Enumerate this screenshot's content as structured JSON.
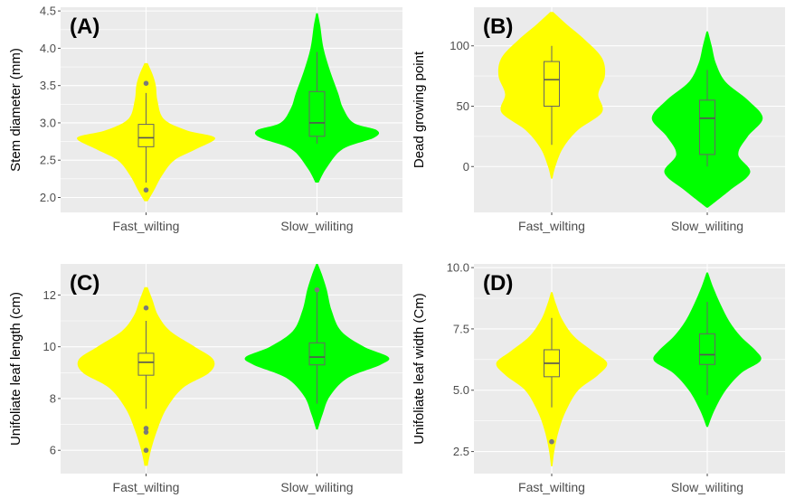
{
  "chart_data": [
    {
      "type": "violin",
      "panel_label": "(A)",
      "ylabel": "Stem diameter (mm)",
      "categories": [
        "Fast_wilting",
        "Slow_wiliting"
      ],
      "yticks": [
        "2.0",
        "2.5",
        "3.0",
        "3.5",
        "4.0",
        "4.5"
      ],
      "ylim": [
        1.8,
        4.55
      ],
      "colors": [
        "#ffff00",
        "#00ff00"
      ],
      "series": [
        {
          "box": {
            "q1": 2.68,
            "median": 2.8,
            "q3": 2.98,
            "whisker_low": 2.2,
            "whisker_high": 3.4
          },
          "outliers": [
            2.1,
            3.53
          ],
          "violin": {
            "min": 1.95,
            "max": 3.8,
            "profile": [
              [
                1.95,
                0.02
              ],
              [
                2.1,
                0.1
              ],
              [
                2.3,
                0.2
              ],
              [
                2.5,
                0.35
              ],
              [
                2.65,
                0.62
              ],
              [
                2.8,
                0.85
              ],
              [
                2.9,
                0.5
              ],
              [
                3.05,
                0.22
              ],
              [
                3.3,
                0.14
              ],
              [
                3.5,
                0.12
              ],
              [
                3.65,
                0.08
              ],
              [
                3.8,
                0.02
              ]
            ]
          }
        },
        {
          "box": {
            "q1": 2.82,
            "median": 3.0,
            "q3": 3.42,
            "whisker_low": 2.72,
            "whisker_high": 3.95
          },
          "outliers": [],
          "violin": {
            "min": 2.2,
            "max": 4.47,
            "profile": [
              [
                2.2,
                0.02
              ],
              [
                2.4,
                0.12
              ],
              [
                2.65,
                0.32
              ],
              [
                2.8,
                0.7
              ],
              [
                2.9,
                0.74
              ],
              [
                3.0,
                0.45
              ],
              [
                3.2,
                0.32
              ],
              [
                3.4,
                0.26
              ],
              [
                3.7,
                0.16
              ],
              [
                4.0,
                0.08
              ],
              [
                4.3,
                0.04
              ],
              [
                4.47,
                0.01
              ]
            ]
          }
        }
      ]
    },
    {
      "type": "violin",
      "panel_label": "(B)",
      "ylabel": "Dead growing point",
      "categories": [
        "Fast_wilting",
        "Slow_wiliting"
      ],
      "yticks": [
        "0",
        "50",
        "100"
      ],
      "ylim": [
        -38,
        132
      ],
      "colors": [
        "#ffff00",
        "#00ff00"
      ],
      "series": [
        {
          "box": {
            "q1": 50,
            "median": 72,
            "q3": 87,
            "whisker_low": 18,
            "whisker_high": 100
          },
          "outliers": [],
          "violin": {
            "min": -10,
            "max": 128,
            "profile": [
              [
                -10,
                0.01
              ],
              [
                0,
                0.05
              ],
              [
                15,
                0.15
              ],
              [
                30,
                0.35
              ],
              [
                45,
                0.68
              ],
              [
                60,
                0.63
              ],
              [
                75,
                0.72
              ],
              [
                90,
                0.68
              ],
              [
                105,
                0.45
              ],
              [
                118,
                0.2
              ],
              [
                128,
                0.02
              ]
            ]
          }
        },
        {
          "box": {
            "q1": 10,
            "median": 40,
            "q3": 55,
            "whisker_low": 0,
            "whisker_high": 80
          },
          "outliers": [],
          "violin": {
            "min": -34,
            "max": 112,
            "profile": [
              [
                -34,
                0.01
              ],
              [
                -20,
                0.3
              ],
              [
                -5,
                0.58
              ],
              [
                10,
                0.42
              ],
              [
                25,
                0.55
              ],
              [
                40,
                0.75
              ],
              [
                55,
                0.55
              ],
              [
                70,
                0.25
              ],
              [
                85,
                0.12
              ],
              [
                100,
                0.06
              ],
              [
                112,
                0.01
              ]
            ]
          }
        }
      ]
    },
    {
      "type": "violin",
      "panel_label": "(C)",
      "ylabel": "Unifoliate leaf length (cm)",
      "categories": [
        "Fast_wilting",
        "Slow_wiliting"
      ],
      "yticks": [
        "6",
        "8",
        "10",
        "12"
      ],
      "ylim": [
        5.1,
        13.2
      ],
      "colors": [
        "#ffff00",
        "#00ff00"
      ],
      "series": [
        {
          "box": {
            "q1": 8.9,
            "median": 9.4,
            "q3": 9.75,
            "whisker_low": 7.6,
            "whisker_high": 11.0
          },
          "outliers": [
            6.0,
            6.7,
            6.85,
            11.5
          ],
          "violin": {
            "min": 5.4,
            "max": 12.3,
            "profile": [
              [
                5.4,
                0.02
              ],
              [
                6.0,
                0.06
              ],
              [
                6.8,
                0.14
              ],
              [
                7.6,
                0.25
              ],
              [
                8.4,
                0.45
              ],
              [
                9.0,
                0.78
              ],
              [
                9.5,
                0.83
              ],
              [
                10.0,
                0.6
              ],
              [
                10.6,
                0.3
              ],
              [
                11.2,
                0.15
              ],
              [
                11.8,
                0.08
              ],
              [
                12.3,
                0.02
              ]
            ]
          }
        },
        {
          "box": {
            "q1": 9.3,
            "median": 9.6,
            "q3": 10.15,
            "whisker_low": 7.8,
            "whisker_high": 12.1
          },
          "outliers": [
            12.2
          ],
          "violin": {
            "min": 6.8,
            "max": 13.2,
            "profile": [
              [
                6.8,
                0.01
              ],
              [
                7.4,
                0.07
              ],
              [
                8.1,
                0.16
              ],
              [
                8.8,
                0.38
              ],
              [
                9.3,
                0.78
              ],
              [
                9.6,
                0.88
              ],
              [
                10.0,
                0.58
              ],
              [
                10.6,
                0.3
              ],
              [
                11.4,
                0.18
              ],
              [
                12.2,
                0.12
              ],
              [
                12.8,
                0.06
              ],
              [
                13.2,
                0.01
              ]
            ]
          }
        }
      ]
    },
    {
      "type": "violin",
      "panel_label": "(D)",
      "ylabel": "Unifoliate leaf width (Cm)",
      "categories": [
        "Fast_wilting",
        "Slow_wiliting"
      ],
      "yticks": [
        "2.5",
        "5.0",
        "7.5",
        "10.0"
      ],
      "ylim": [
        1.6,
        10.15
      ],
      "colors": [
        "#ffff00",
        "#00ff00"
      ],
      "series": [
        {
          "box": {
            "q1": 5.55,
            "median": 6.1,
            "q3": 6.65,
            "whisker_low": 4.3,
            "whisker_high": 7.95
          },
          "outliers": [
            2.9
          ],
          "violin": {
            "min": 1.9,
            "max": 9.0,
            "profile": [
              [
                1.9,
                0.01
              ],
              [
                2.6,
                0.04
              ],
              [
                3.4,
                0.1
              ],
              [
                4.2,
                0.2
              ],
              [
                5.0,
                0.36
              ],
              [
                5.6,
                0.62
              ],
              [
                6.1,
                0.75
              ],
              [
                6.6,
                0.55
              ],
              [
                7.2,
                0.3
              ],
              [
                7.9,
                0.14
              ],
              [
                8.5,
                0.06
              ],
              [
                9.0,
                0.01
              ]
            ]
          }
        },
        {
          "box": {
            "q1": 6.05,
            "median": 6.45,
            "q3": 7.3,
            "whisker_low": 4.8,
            "whisker_high": 8.6
          },
          "outliers": [],
          "violin": {
            "min": 3.5,
            "max": 9.8,
            "profile": [
              [
                3.5,
                0.01
              ],
              [
                4.2,
                0.1
              ],
              [
                5.0,
                0.25
              ],
              [
                5.7,
                0.46
              ],
              [
                6.2,
                0.72
              ],
              [
                6.6,
                0.66
              ],
              [
                7.2,
                0.45
              ],
              [
                7.8,
                0.3
              ],
              [
                8.5,
                0.18
              ],
              [
                9.2,
                0.08
              ],
              [
                9.8,
                0.01
              ]
            ]
          }
        }
      ]
    }
  ]
}
